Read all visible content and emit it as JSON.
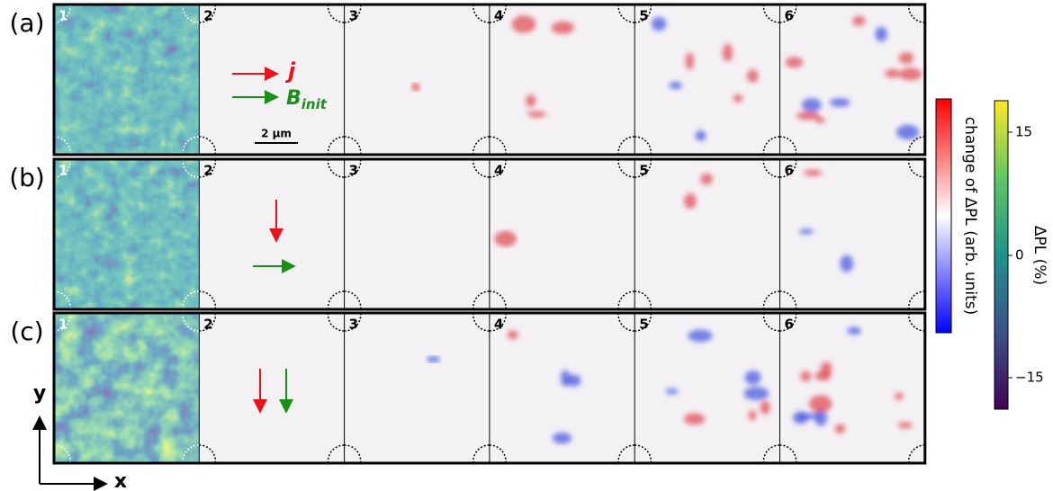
{
  "rows": [
    {
      "label": "(a)",
      "panels": [
        "1",
        "2",
        "3",
        "4",
        "5",
        "6"
      ]
    },
    {
      "label": "(b)",
      "panels": [
        "1",
        "2",
        "3",
        "4",
        "5",
        "6"
      ]
    },
    {
      "label": "(c)",
      "panels": [
        "1",
        "2",
        "3",
        "4",
        "5",
        "6"
      ]
    }
  ],
  "annotations": {
    "current": "j",
    "field": "B",
    "field_sub": "init",
    "scale_bar": "2 μm"
  },
  "axes": {
    "x": "x",
    "y": "y"
  },
  "colorbars": [
    {
      "label": "change of ΔPL (arb. units)"
    },
    {
      "label": "ΔPL (%)",
      "ticks": [
        "15",
        "0",
        "−15"
      ]
    }
  ]
}
